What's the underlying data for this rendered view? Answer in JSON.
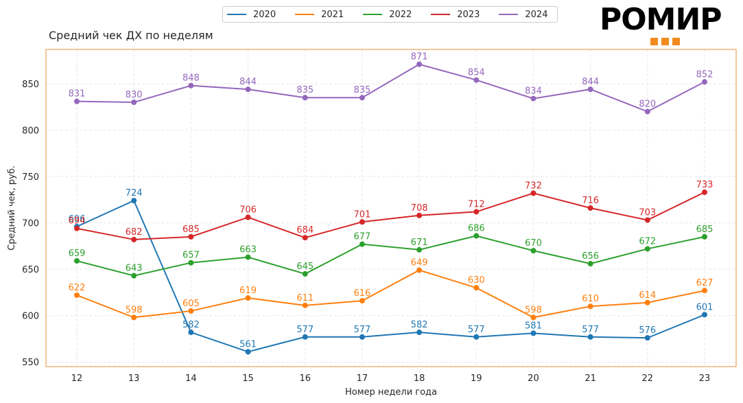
{
  "brand": {
    "logo_text": "РОМИР",
    "logo_color": "#f28b1f"
  },
  "chart_data": {
    "type": "line",
    "title": "Средний чек ДХ по неделям",
    "xlabel": "Номер недели года",
    "ylabel": "Средний чек, руб.",
    "x": [
      12,
      13,
      14,
      15,
      16,
      17,
      18,
      19,
      20,
      21,
      22,
      23
    ],
    "ylim": [
      545,
      887
    ],
    "yticks": [
      550,
      600,
      650,
      700,
      750,
      800,
      850
    ],
    "grid": true,
    "legend_position": "top-center",
    "series": [
      {
        "name": "2020",
        "color": "#1f77b4",
        "values": [
          696,
          724,
          582,
          561,
          577,
          577,
          582,
          577,
          581,
          577,
          576,
          601
        ]
      },
      {
        "name": "2021",
        "color": "#ff7f0e",
        "values": [
          622,
          598,
          605,
          619,
          611,
          616,
          649,
          630,
          598,
          610,
          614,
          627
        ]
      },
      {
        "name": "2022",
        "color": "#2ca02c",
        "values": [
          659,
          643,
          657,
          663,
          645,
          677,
          671,
          686,
          670,
          656,
          672,
          685
        ]
      },
      {
        "name": "2023",
        "color": "#d62728",
        "values": [
          694,
          682,
          685,
          706,
          684,
          701,
          708,
          712,
          732,
          716,
          703,
          733
        ]
      },
      {
        "name": "2024",
        "color": "#9467bd",
        "values": [
          831,
          830,
          848,
          844,
          835,
          835,
          871,
          854,
          834,
          844,
          820,
          852
        ]
      }
    ]
  }
}
